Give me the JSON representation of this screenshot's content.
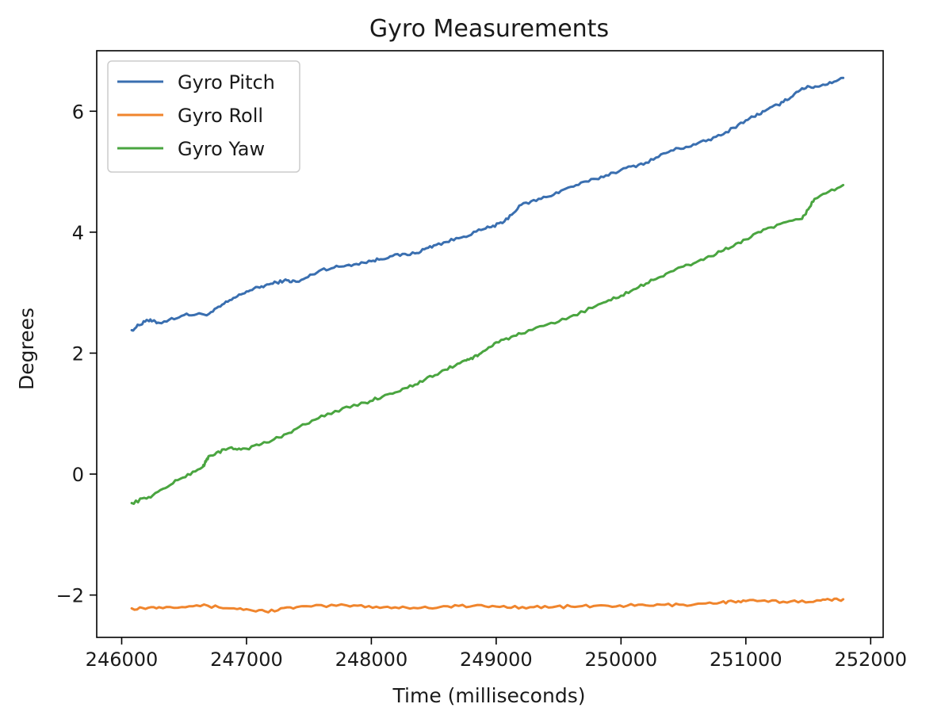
{
  "chart_data": {
    "type": "line",
    "title": "Gyro Measurements",
    "xlabel": "Time (milliseconds)",
    "ylabel": "Degrees",
    "xlim": [
      245800,
      252100
    ],
    "ylim": [
      -2.7,
      7.0
    ],
    "xticks": [
      246000,
      247000,
      248000,
      249000,
      250000,
      251000,
      252000
    ],
    "yticks": [
      -2,
      0,
      2,
      4,
      6
    ],
    "ytick_labels": [
      "−2",
      "0",
      "2",
      "4",
      "6"
    ],
    "legend_position": "top-left",
    "grid": false,
    "series": [
      {
        "name": "Gyro Pitch",
        "color": "#3a6fb0",
        "x": [
          246080,
          246200,
          246300,
          246500,
          246700,
          246850,
          247000,
          247150,
          247300,
          247420,
          247600,
          247800,
          248000,
          248150,
          248350,
          248500,
          248700,
          248900,
          249050,
          249200,
          249400,
          249600,
          249800,
          250000,
          250200,
          250400,
          250600,
          250800,
          251000,
          251150,
          251300,
          251450,
          251600,
          251780
        ],
        "y": [
          2.38,
          2.55,
          2.5,
          2.63,
          2.65,
          2.85,
          3.02,
          3.12,
          3.2,
          3.18,
          3.38,
          3.45,
          3.52,
          3.6,
          3.65,
          3.78,
          3.9,
          4.05,
          4.15,
          4.45,
          4.58,
          4.75,
          4.88,
          5.03,
          5.15,
          5.35,
          5.45,
          5.6,
          5.85,
          6.0,
          6.15,
          6.38,
          6.42,
          6.55
        ]
      },
      {
        "name": "Gyro Roll",
        "color": "#f0852d",
        "x": [
          246080,
          246300,
          246600,
          246900,
          247150,
          247400,
          247800,
          248100,
          248400,
          248700,
          249000,
          249300,
          249600,
          249900,
          250200,
          250500,
          250800,
          251000,
          251300,
          251600,
          251780
        ],
        "y": [
          -2.22,
          -2.2,
          -2.17,
          -2.22,
          -2.27,
          -2.2,
          -2.17,
          -2.2,
          -2.21,
          -2.18,
          -2.19,
          -2.2,
          -2.19,
          -2.18,
          -2.17,
          -2.16,
          -2.12,
          -2.1,
          -2.11,
          -2.09,
          -2.07
        ]
      },
      {
        "name": "Gyro Yaw",
        "color": "#4aa540",
        "x": [
          246080,
          246250,
          246450,
          246650,
          246700,
          246850,
          247000,
          247200,
          247400,
          247650,
          247950,
          248150,
          248350,
          248550,
          248750,
          248850,
          249000,
          249200,
          249500,
          249800,
          250000,
          250200,
          250400,
          250600,
          250800,
          251000,
          251200,
          251450,
          251550,
          251780
        ],
        "y": [
          -0.48,
          -0.35,
          -0.1,
          0.12,
          0.3,
          0.42,
          0.42,
          0.55,
          0.75,
          1.0,
          1.18,
          1.33,
          1.48,
          1.68,
          1.88,
          1.95,
          2.18,
          2.32,
          2.52,
          2.78,
          2.95,
          3.15,
          3.35,
          3.5,
          3.68,
          3.88,
          4.08,
          4.22,
          4.55,
          4.78
        ]
      }
    ]
  }
}
